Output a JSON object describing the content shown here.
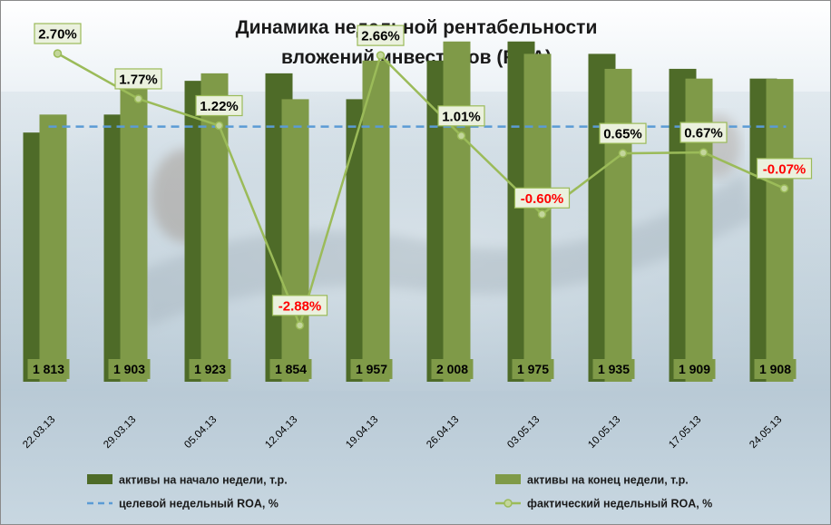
{
  "chart_data": {
    "type": "bar",
    "title_lines": [
      "Динамика недельной рентабельности",
      "вложений  инвесторов (ROA)"
    ],
    "categories": [
      "22.03.13",
      "29.03.13",
      "05.04.13",
      "12.04.13",
      "19.04.13",
      "26.04.13",
      "03.05.13",
      "10.05.13",
      "17.05.13",
      "24.05.13"
    ],
    "series": [
      {
        "name": "активы на начало  недели, т.р.",
        "kind": "bar",
        "color": "#4e6b28",
        "values": [
          1765,
          1813,
          1903,
          1923,
          1854,
          1957,
          2008,
          1975,
          1935,
          1909
        ]
      },
      {
        "name": "активы на конец недели, т.р.",
        "kind": "bar",
        "color": "#7f9a48",
        "values": [
          1813,
          1903,
          1923,
          1854,
          1957,
          2008,
          1975,
          1935,
          1909,
          1908
        ]
      },
      {
        "name": "целевой недельный ROA, %",
        "kind": "line-dashed",
        "color": "#5b9bd5",
        "values": [
          1.2,
          1.2,
          1.2,
          1.2,
          1.2,
          1.2,
          1.2,
          1.2,
          1.2,
          1.2
        ]
      },
      {
        "name": "фактический недельный ROA, %",
        "kind": "line-marker",
        "color": "#9bbb59",
        "values": [
          2.7,
          1.77,
          1.22,
          -2.88,
          2.66,
          1.01,
          -0.6,
          0.65,
          0.67,
          -0.07
        ]
      }
    ],
    "bar_labels": [
      "1 813",
      "1 903",
      "1 923",
      "1 854",
      "1 957",
      "2 008",
      "1 975",
      "1 935",
      "1 909",
      "1 908"
    ],
    "roa_labels": [
      "2.70%",
      "1.77%",
      "1.22%",
      "-2.88%",
      "2.66%",
      "1.01%",
      "-0.60%",
      "0.65%",
      "0.67%",
      "-0.07%"
    ],
    "negative_label_color": "#ff0000",
    "positive_label_color": "#000000",
    "bars_ylim": [
      1100,
      2080
    ],
    "roa_ylim": [
      -4.0,
      3.5
    ],
    "legend_position": "bottom",
    "grid": false
  }
}
